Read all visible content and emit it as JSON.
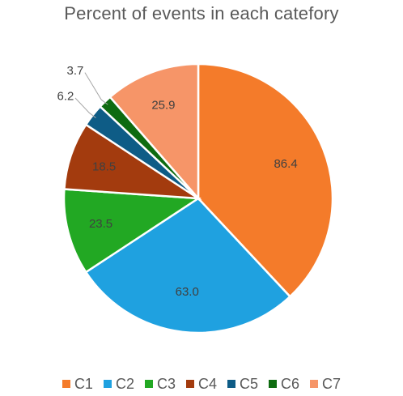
{
  "chart_data": {
    "type": "pie",
    "title": "Percent of events in each catefory",
    "categories": [
      "C1",
      "C2",
      "C3",
      "C4",
      "C5",
      "C6",
      "C7"
    ],
    "values": [
      86.4,
      63.0,
      23.5,
      18.5,
      6.2,
      3.7,
      25.9
    ],
    "labels": [
      "86.4",
      "63.0",
      "23.5",
      "18.5",
      "6.2",
      "3.7",
      "25.9"
    ],
    "colors": [
      "#F47B2A",
      "#1FA1E0",
      "#22A823",
      "#A33B0E",
      "#0E5C86",
      "#0E6B10",
      "#F69568"
    ],
    "start_angle_deg": 0,
    "direction": "clockwise",
    "legend_position": "bottom"
  }
}
